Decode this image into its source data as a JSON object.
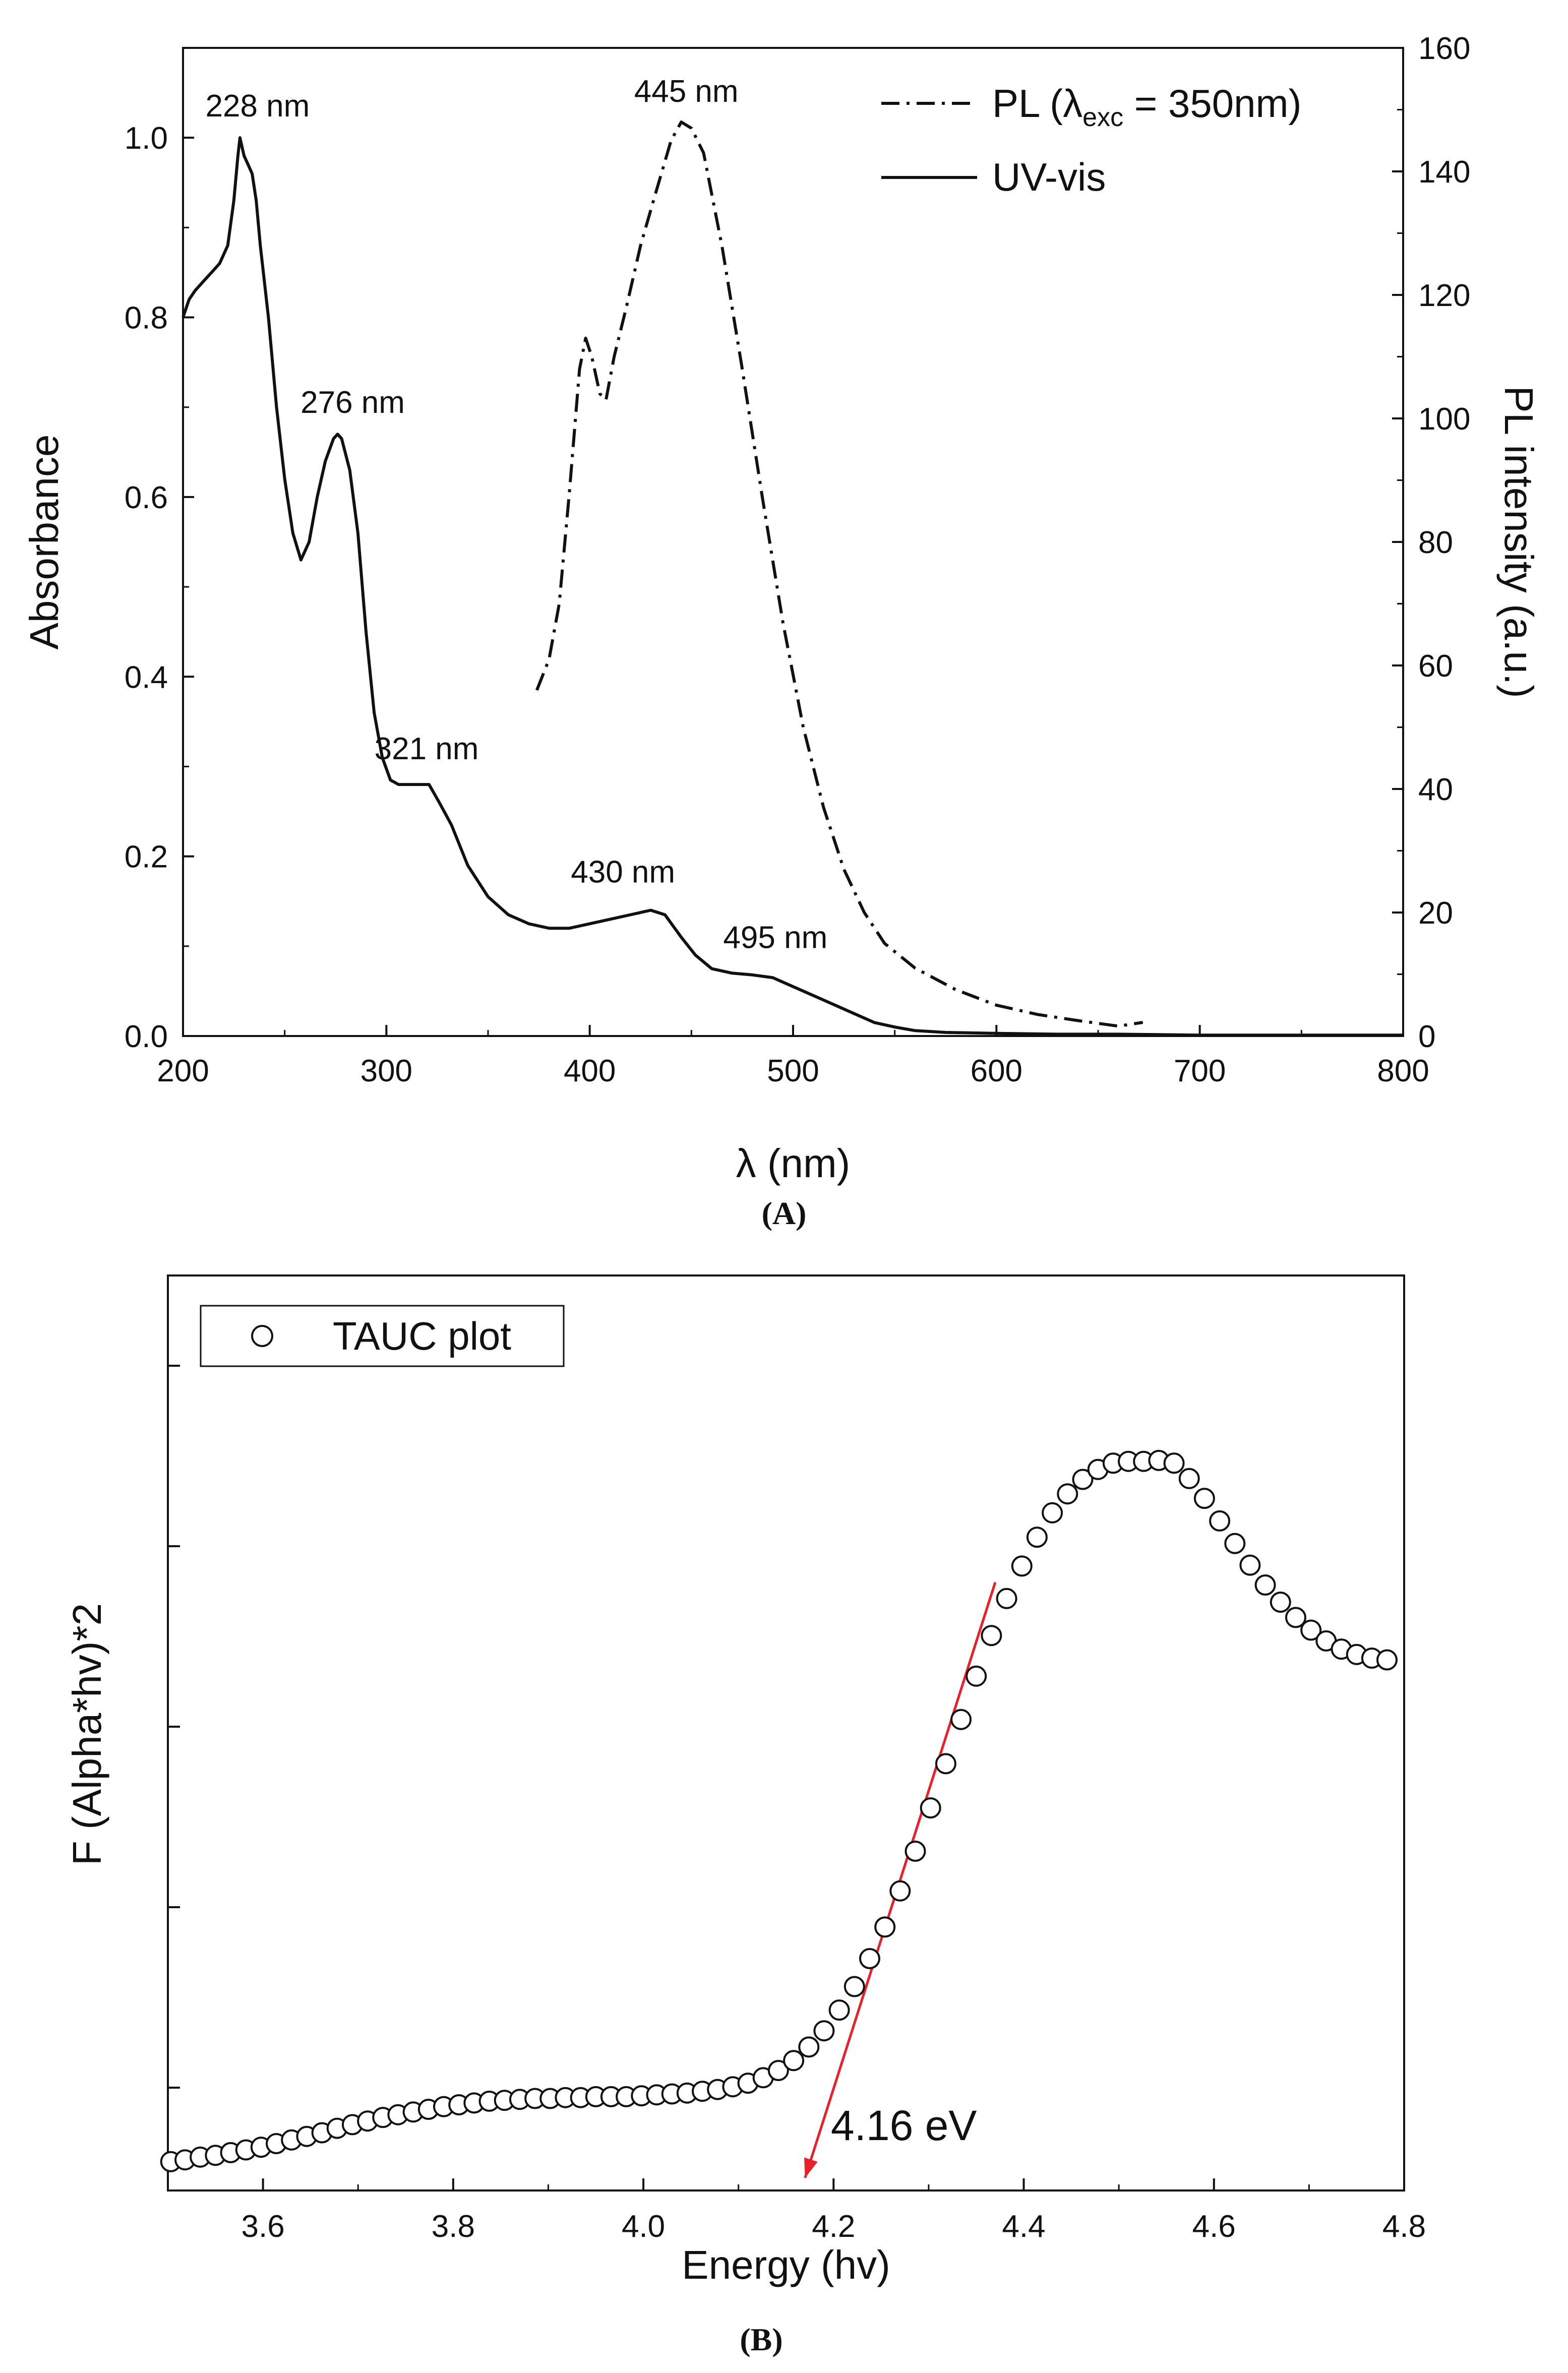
{
  "chart_data": [
    {
      "panel": "(A)",
      "type": "line",
      "xlabel": "λ (nm)",
      "ylabel": "Absorbance",
      "y2label": "PL intensity (a.u.)",
      "xlim": [
        200,
        800
      ],
      "ylim": [
        0,
        1.1
      ],
      "y2lim": [
        0,
        160
      ],
      "xticks": [
        200,
        300,
        400,
        500,
        600,
        700,
        800
      ],
      "yticks": [
        0.0,
        0.2,
        0.4,
        0.6,
        0.8,
        1.0
      ],
      "yticklabels": [
        "0.0",
        "0.2",
        "0.4",
        "0.6",
        "0.8",
        "1.0"
      ],
      "y2ticks": [
        0,
        20,
        40,
        60,
        80,
        100,
        120,
        140,
        160
      ],
      "legend": {
        "pl_prefix": "PL (λ",
        "pl_sub": "exc",
        "pl_suffix": " = 350nm)",
        "uv": "UV-vis"
      },
      "series": [
        {
          "name": "UV-vis",
          "axis": "left",
          "style": "solid",
          "x": [
            200,
            203,
            206,
            210,
            214,
            218,
            222,
            225,
            227,
            228,
            230,
            232,
            234,
            236,
            238,
            242,
            246,
            250,
            254,
            258,
            262,
            266,
            270,
            274,
            276,
            278,
            282,
            286,
            290,
            294,
            298,
            302,
            306,
            310,
            315,
            321,
            326,
            332,
            340,
            350,
            360,
            370,
            380,
            390,
            400,
            410,
            420,
            430,
            437,
            445,
            452,
            460,
            470,
            480,
            490,
            500,
            510,
            520,
            530,
            540,
            550,
            560,
            575,
            600,
            630,
            660,
            700,
            750,
            800
          ],
          "y": [
            0.8,
            0.82,
            0.83,
            0.84,
            0.85,
            0.86,
            0.88,
            0.93,
            0.98,
            1.0,
            0.98,
            0.97,
            0.96,
            0.93,
            0.88,
            0.8,
            0.7,
            0.62,
            0.56,
            0.53,
            0.55,
            0.6,
            0.64,
            0.665,
            0.67,
            0.665,
            0.63,
            0.56,
            0.45,
            0.36,
            0.31,
            0.285,
            0.28,
            0.28,
            0.28,
            0.28,
            0.26,
            0.235,
            0.19,
            0.155,
            0.135,
            0.125,
            0.12,
            0.12,
            0.125,
            0.13,
            0.135,
            0.14,
            0.135,
            0.11,
            0.09,
            0.075,
            0.07,
            0.068,
            0.065,
            0.055,
            0.045,
            0.035,
            0.025,
            0.015,
            0.01,
            0.006,
            0.004,
            0.003,
            0.002,
            0.002,
            0.001,
            0.001,
            0.001
          ]
        },
        {
          "name": "PL",
          "axis": "right",
          "style": "dashdot",
          "x": [
            374,
            380,
            385,
            390,
            395,
            398,
            401,
            405,
            408,
            412,
            418,
            425,
            432,
            440,
            445,
            450,
            456,
            465,
            475,
            485,
            495,
            505,
            515,
            525,
            535,
            545,
            560,
            580,
            600,
            620,
            640,
            660,
            672
          ],
          "y": [
            56,
            61,
            70,
            88,
            108,
            113,
            110,
            104,
            103,
            110,
            118,
            128,
            136,
            145,
            148,
            147,
            143,
            128,
            108,
            87,
            67,
            50,
            37,
            27,
            20,
            15,
            11,
            7.5,
            5,
            3.5,
            2.5,
            1.6,
            2.2
          ]
        }
      ],
      "annotations": [
        {
          "text": "228 nm",
          "x": 228,
          "y": 1.0
        },
        {
          "text": "276 nm",
          "x": 276,
          "y": 0.67
        },
        {
          "text": "321 nm",
          "x": 321,
          "y": 0.28
        },
        {
          "text": "430 nm",
          "x": 430,
          "y": 0.14
        },
        {
          "text": "495 nm",
          "x": 495,
          "y": 0.07
        },
        {
          "text": "445 nm",
          "x": 445,
          "y2": 148
        }
      ]
    },
    {
      "panel": "(B)",
      "type": "scatter",
      "xlabel": "Energy (hv)",
      "ylabel": "F (Alpha*hv)*2",
      "xlim": [
        3.5,
        4.8
      ],
      "ylim": [
        0,
        1.0
      ],
      "xticks": [
        3.6,
        3.8,
        4.0,
        4.2,
        4.4,
        4.6,
        4.8
      ],
      "xticklabels": [
        "3.6",
        "3.8",
        "4.0",
        "4.2",
        "4.4",
        "4.6",
        "4.8"
      ],
      "yticks_unlabeled": [
        0.1,
        0.3,
        0.5,
        0.7,
        0.9
      ],
      "legend": {
        "label": "TAUC plot"
      },
      "series": [
        {
          "name": "TAUC plot",
          "x": [
            3.503,
            3.518,
            3.534,
            3.55,
            3.566,
            3.582,
            3.598,
            3.614,
            3.63,
            3.646,
            3.662,
            3.678,
            3.694,
            3.71,
            3.726,
            3.742,
            3.758,
            3.774,
            3.79,
            3.806,
            3.822,
            3.838,
            3.854,
            3.87,
            3.886,
            3.902,
            3.918,
            3.934,
            3.95,
            3.966,
            3.982,
            3.998,
            4.014,
            4.03,
            4.046,
            4.062,
            4.078,
            4.094,
            4.11,
            4.126,
            4.142,
            4.158,
            4.174,
            4.19,
            4.206,
            4.222,
            4.238,
            4.254,
            4.27,
            4.286,
            4.302,
            4.318,
            4.334,
            4.35,
            4.366,
            4.382,
            4.398,
            4.414,
            4.43,
            4.446,
            4.462,
            4.478,
            4.494,
            4.51,
            4.526,
            4.542,
            4.558,
            4.574,
            4.59,
            4.606,
            4.622,
            4.638,
            4.654,
            4.67,
            4.686,
            4.702,
            4.718,
            4.734,
            4.75,
            4.766,
            4.782
          ],
          "y": [
            0.018,
            0.02,
            0.023,
            0.025,
            0.028,
            0.031,
            0.034,
            0.038,
            0.042,
            0.046,
            0.05,
            0.055,
            0.059,
            0.063,
            0.067,
            0.07,
            0.073,
            0.076,
            0.079,
            0.081,
            0.083,
            0.085,
            0.086,
            0.087,
            0.088,
            0.088,
            0.089,
            0.089,
            0.09,
            0.09,
            0.09,
            0.091,
            0.092,
            0.093,
            0.094,
            0.096,
            0.098,
            0.101,
            0.105,
            0.111,
            0.119,
            0.13,
            0.145,
            0.163,
            0.186,
            0.212,
            0.243,
            0.278,
            0.318,
            0.362,
            0.41,
            0.459,
            0.508,
            0.556,
            0.601,
            0.642,
            0.678,
            0.71,
            0.737,
            0.758,
            0.774,
            0.785,
            0.792,
            0.794,
            0.794,
            0.795,
            0.792,
            0.775,
            0.753,
            0.728,
            0.703,
            0.679,
            0.657,
            0.638,
            0.621,
            0.607,
            0.595,
            0.586,
            0.58,
            0.576,
            0.574
          ]
        }
      ],
      "fit_line": {
        "x": [
          4.37,
          4.17
        ],
        "y": [
          0.66,
          0.0
        ],
        "color": "#e8202a"
      },
      "annotations": [
        {
          "text": "4.16 eV",
          "x": 4.16,
          "y": 0.0
        }
      ]
    }
  ]
}
